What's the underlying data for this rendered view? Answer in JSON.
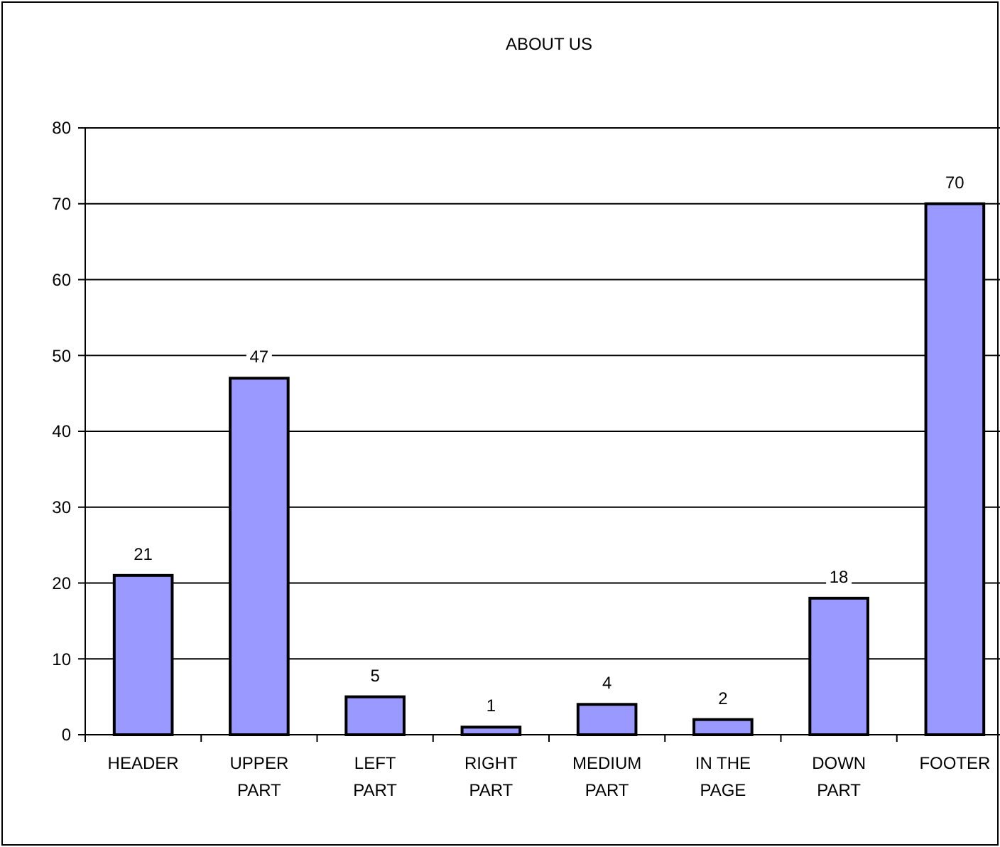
{
  "chart_data": {
    "type": "bar",
    "title": "ABOUT US",
    "categories": [
      "HEADER",
      "UPPER PART",
      "LEFT PART",
      "RIGHT PART",
      "MEDIUM PART",
      "IN THE PAGE",
      "DOWN PART",
      "FOOTER"
    ],
    "values": [
      21,
      47,
      5,
      1,
      4,
      2,
      18,
      70
    ],
    "color": "#9999ff",
    "ylim": [
      0,
      80
    ],
    "yticks": [
      0,
      10,
      20,
      30,
      40,
      50,
      60,
      70,
      80
    ],
    "grid": "y",
    "data_labels": true
  }
}
